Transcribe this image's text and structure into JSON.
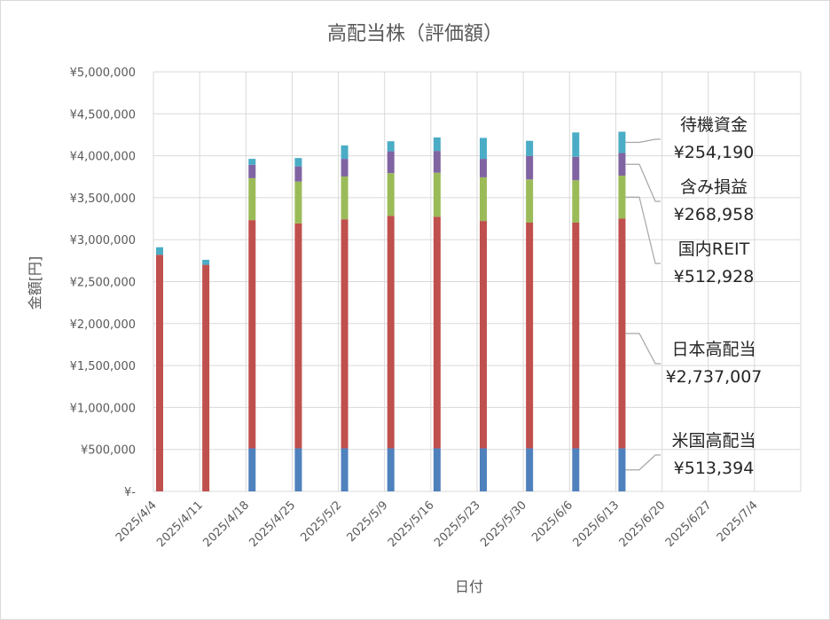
{
  "chart_data": {
    "type": "bar",
    "stacked": true,
    "title": "高配当株（評価額）",
    "xlabel": "日付",
    "ylabel": "金額[円]",
    "ylim": [
      0,
      5000000
    ],
    "yticks": [
      "¥-",
      "¥500,000",
      "¥1,000,000",
      "¥1,500,000",
      "¥2,000,000",
      "¥2,500,000",
      "¥3,000,000",
      "¥3,500,000",
      "¥4,000,000",
      "¥4,500,000",
      "¥5,000,000"
    ],
    "categories": [
      "2025/4/4",
      "2025/4/11",
      "2025/4/18",
      "2025/4/25",
      "2025/5/2",
      "2025/5/9",
      "2025/5/16",
      "2025/5/23",
      "2025/5/30",
      "2025/6/6",
      "2025/6/13",
      "2025/6/20",
      "2025/6/27",
      "2025/7/4"
    ],
    "grid": true,
    "series": [
      {
        "name": "米国高配当",
        "color": "#4f81bd",
        "values": [
          0,
          0,
          513000,
          513000,
          513000,
          513000,
          513000,
          513000,
          513000,
          513000,
          513394,
          null,
          null,
          null
        ]
      },
      {
        "name": "日本高配当",
        "color": "#c0504d",
        "values": [
          2820000,
          2700000,
          2720000,
          2680000,
          2730000,
          2770000,
          2760000,
          2710000,
          2690000,
          2690000,
          2737007,
          null,
          null,
          null
        ]
      },
      {
        "name": "国内REIT",
        "color": "#9bbb59",
        "values": [
          0,
          0,
          500000,
          500000,
          510000,
          510000,
          525000,
          520000,
          515000,
          505000,
          512928,
          null,
          null,
          null
        ]
      },
      {
        "name": "含み損益",
        "color": "#8064a2",
        "values": [
          0,
          0,
          160000,
          180000,
          210000,
          260000,
          260000,
          220000,
          280000,
          280000,
          268958,
          null,
          null,
          null
        ]
      },
      {
        "name": "待機資金",
        "color": "#4bacc6",
        "values": [
          90000,
          60000,
          70000,
          100000,
          160000,
          120000,
          160000,
          250000,
          180000,
          290000,
          254190,
          null,
          null,
          null
        ]
      }
    ],
    "annotations": [
      {
        "series": "待機資金",
        "label": "待機資金",
        "value_text": "¥254,190"
      },
      {
        "series": "含み損益",
        "label": "含み損益",
        "value_text": "¥268,958"
      },
      {
        "series": "国内REIT",
        "label": "国内REIT",
        "value_text": "¥512,928"
      },
      {
        "series": "日本高配当",
        "label": "日本高配当",
        "value_text": "¥2,737,007"
      },
      {
        "series": "米国高配当",
        "label": "米国高配当",
        "value_text": "¥513,394"
      }
    ]
  }
}
